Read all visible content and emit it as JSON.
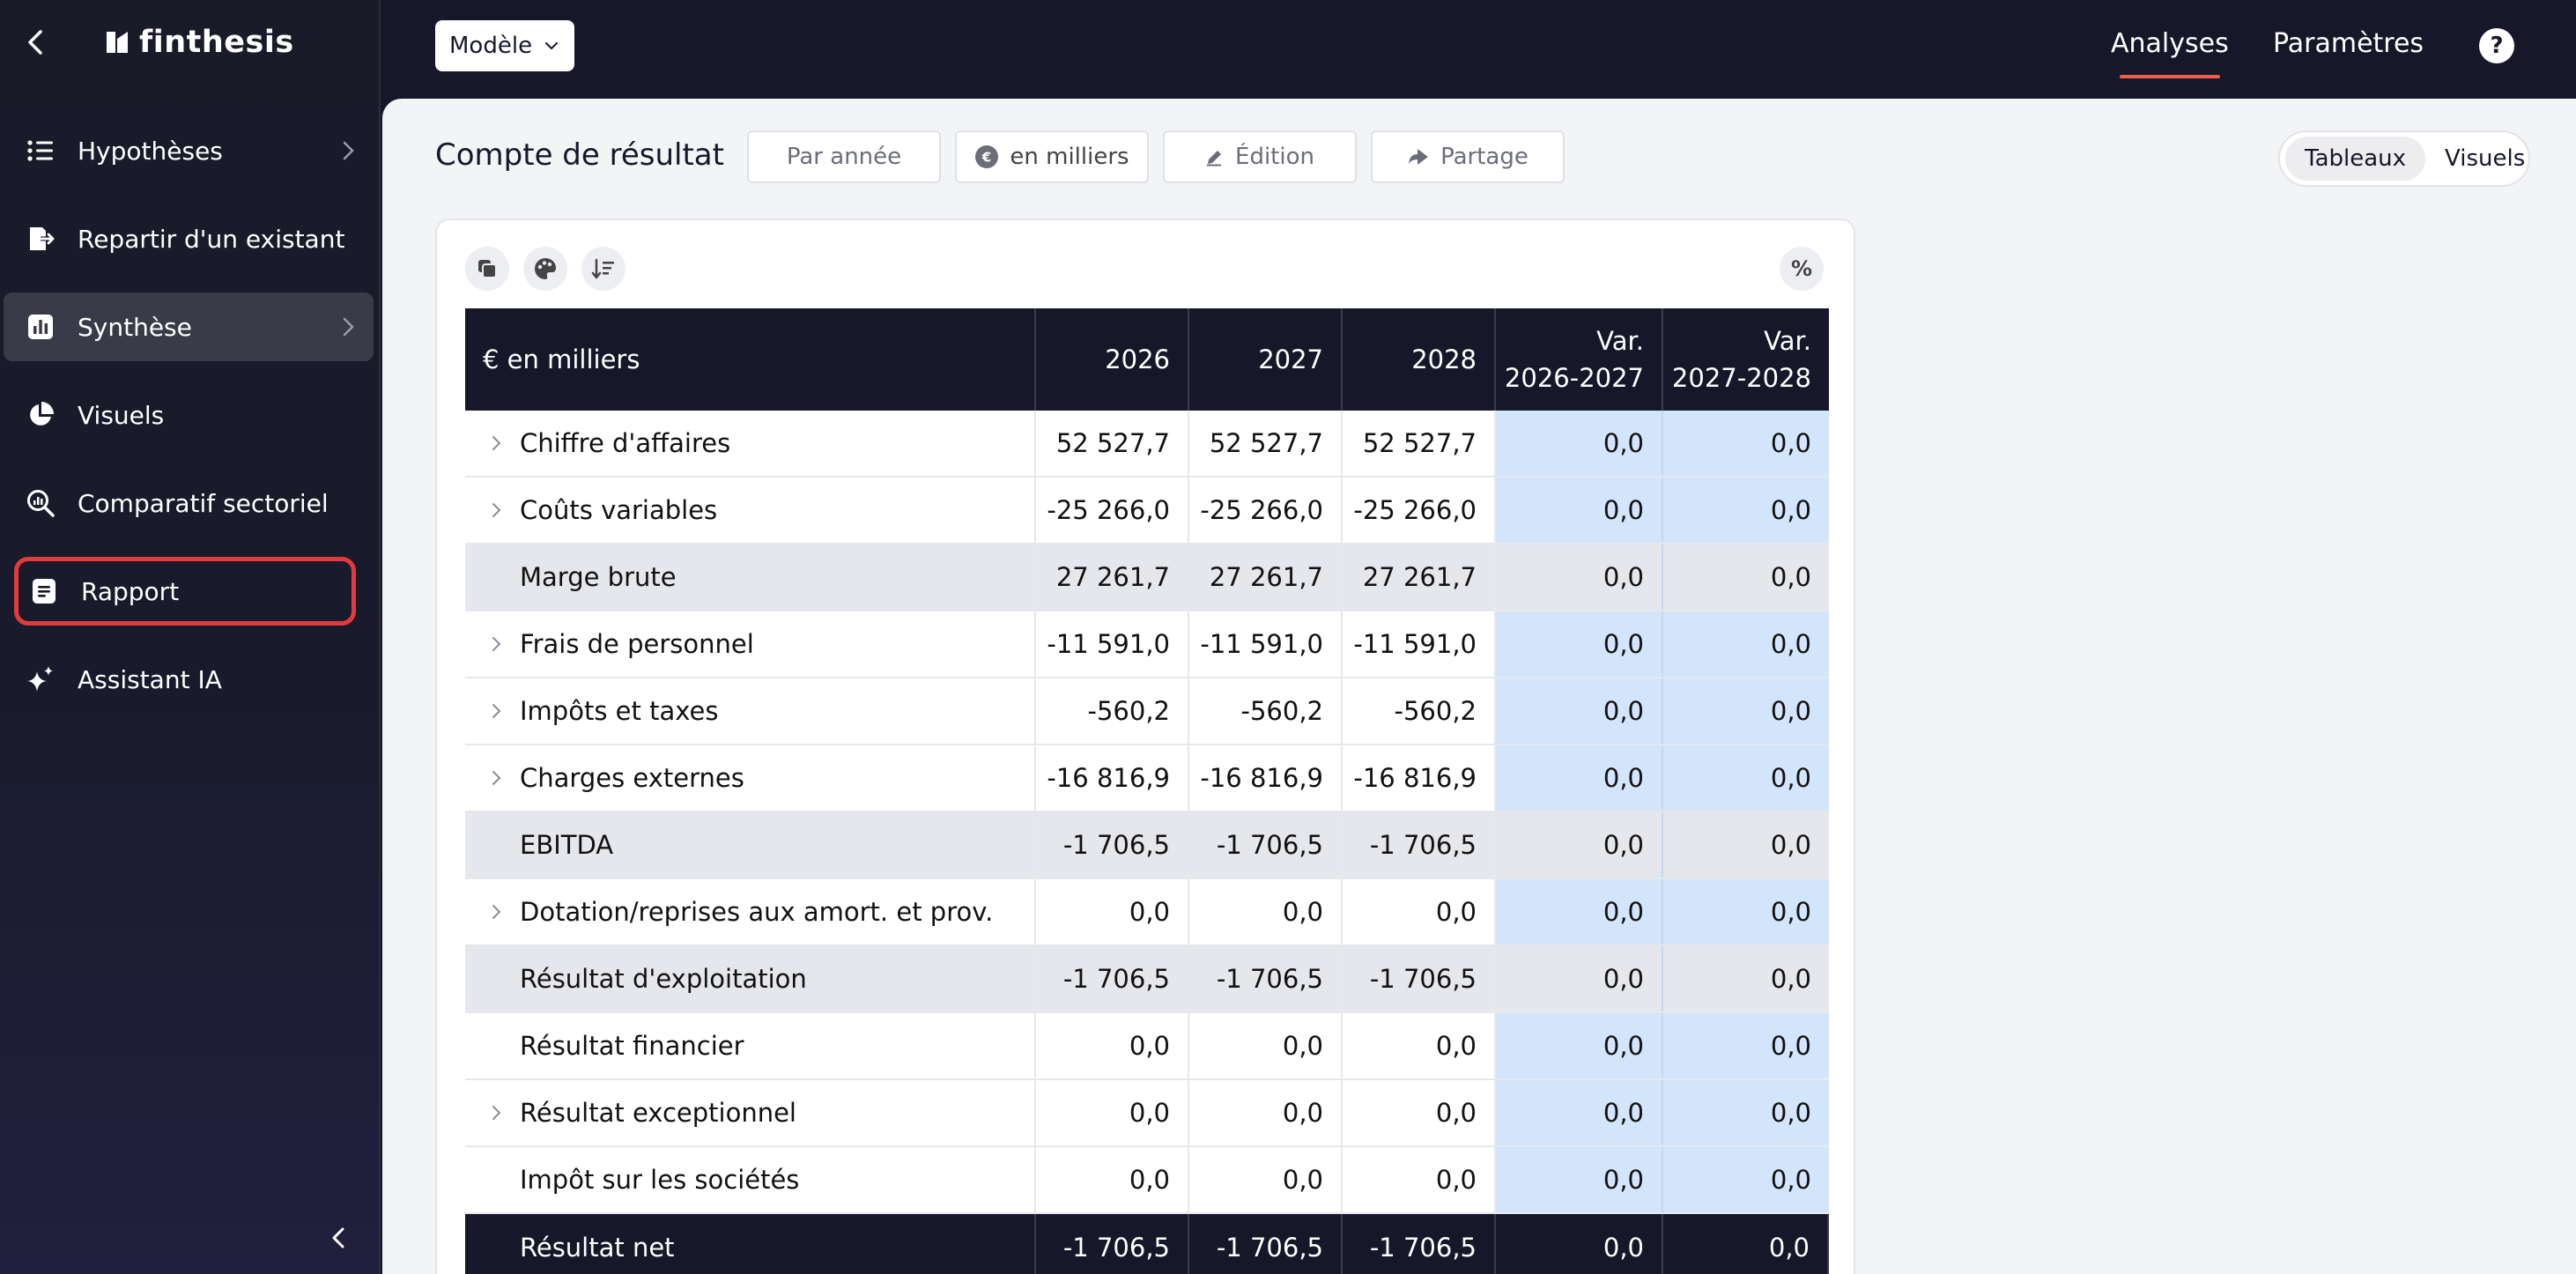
{
  "app": {
    "name": "finthesis"
  },
  "sidebar": {
    "items": [
      {
        "label": "Hypothèses",
        "icon": "list-icon",
        "has_chevron": true
      },
      {
        "label": "Repartir d'un existant",
        "icon": "import-icon",
        "has_chevron": false
      },
      {
        "label": "Synthèse",
        "icon": "bar-chart-icon",
        "has_chevron": true,
        "active": true
      },
      {
        "label": "Visuels",
        "icon": "pie-chart-icon",
        "has_chevron": false
      },
      {
        "label": "Comparatif sectoriel",
        "icon": "magnifier-chart-icon",
        "has_chevron": false
      },
      {
        "label": "Rapport",
        "icon": "document-icon",
        "has_chevron": false,
        "highlighted": true
      },
      {
        "label": "Assistant IA",
        "icon": "sparkle-icon",
        "has_chevron": false
      }
    ]
  },
  "topbar": {
    "model_select": "Modèle",
    "nav": [
      {
        "label": "Analyses",
        "active": true
      },
      {
        "label": "Paramètres",
        "active": false
      }
    ],
    "help": "?"
  },
  "toolbar": {
    "title": "Compte de résultat",
    "period": "Par année",
    "unit": "en milliers",
    "edit": "Édition",
    "share": "Partage",
    "view_options": [
      "Tableaux",
      "Visuels"
    ],
    "view_selected": "Tableaux",
    "percent_toggle": "%"
  },
  "table": {
    "columns": [
      "€ en milliers",
      "2026",
      "2027",
      "2028",
      "Var.",
      "2026-2027",
      "Var.",
      "2027-2028"
    ],
    "rows": [
      {
        "label": "Chiffre d'affaires",
        "values": [
          "52 527,7",
          "52 527,7",
          "52 527,7",
          "0,0",
          "0,0"
        ],
        "type": "expandable"
      },
      {
        "label": "Coûts variables",
        "values": [
          "-25 266,0",
          "-25 266,0",
          "-25 266,0",
          "0,0",
          "0,0"
        ],
        "type": "expandable"
      },
      {
        "label": "Marge brute",
        "values": [
          "27 261,7",
          "27 261,7",
          "27 261,7",
          "0,0",
          "0,0"
        ],
        "type": "subtotal"
      },
      {
        "label": "Frais de personnel",
        "values": [
          "-11 591,0",
          "-11 591,0",
          "-11 591,0",
          "0,0",
          "0,0"
        ],
        "type": "expandable"
      },
      {
        "label": "Impôts et taxes",
        "values": [
          "-560,2",
          "-560,2",
          "-560,2",
          "0,0",
          "0,0"
        ],
        "type": "expandable"
      },
      {
        "label": "Charges externes",
        "values": [
          "-16 816,9",
          "-16 816,9",
          "-16 816,9",
          "0,0",
          "0,0"
        ],
        "type": "expandable"
      },
      {
        "label": "EBITDA",
        "values": [
          "-1 706,5",
          "-1 706,5",
          "-1 706,5",
          "0,0",
          "0,0"
        ],
        "type": "subtotal"
      },
      {
        "label": "Dotation/reprises aux amort. et prov.",
        "values": [
          "0,0",
          "0,0",
          "0,0",
          "0,0",
          "0,0"
        ],
        "type": "expandable"
      },
      {
        "label": "Résultat d'exploitation",
        "values": [
          "-1 706,5",
          "-1 706,5",
          "-1 706,5",
          "0,0",
          "0,0"
        ],
        "type": "subtotal"
      },
      {
        "label": "Résultat financier",
        "values": [
          "0,0",
          "0,0",
          "0,0",
          "0,0",
          "0,0"
        ],
        "type": "plain"
      },
      {
        "label": "Résultat exceptionnel",
        "values": [
          "0,0",
          "0,0",
          "0,0",
          "0,0",
          "0,0"
        ],
        "type": "expandable"
      },
      {
        "label": "Impôt sur les sociétés",
        "values": [
          "0,0",
          "0,0",
          "0,0",
          "0,0",
          "0,0"
        ],
        "type": "plain"
      },
      {
        "label": "Résultat net",
        "values": [
          "-1 706,5",
          "-1 706,5",
          "-1 706,5",
          "0,0",
          "0,0"
        ],
        "type": "total"
      }
    ]
  },
  "colors": {
    "sidebar_bg": "#191b29",
    "topbar_bg": "#16182a",
    "accent": "#ee5d4c",
    "highlight_border": "#e23b3b",
    "variance_bg": "#d3e5fb",
    "subtotal_bg": "#e5e7ec"
  }
}
